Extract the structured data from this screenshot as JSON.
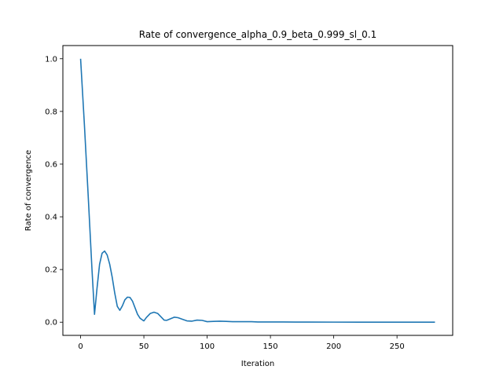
{
  "chart_data": {
    "type": "line",
    "title": "Rate of convergence_alpha_0.9_beta_0.999_sl_0.1",
    "xlabel": "Iteration",
    "ylabel": "Rate of convergence",
    "xlim": [
      -14,
      294
    ],
    "ylim": [
      -0.05,
      1.05
    ],
    "xticks": [
      0,
      50,
      100,
      150,
      200,
      250
    ],
    "yticks": [
      0.0,
      0.2,
      0.4,
      0.6,
      0.8,
      1.0
    ],
    "xtick_labels": [
      "0",
      "50",
      "100",
      "150",
      "200",
      "250"
    ],
    "ytick_labels": [
      "0.0",
      "0.2",
      "0.4",
      "0.6",
      "0.8",
      "1.0"
    ],
    "grid": false,
    "legend": "none",
    "series": [
      {
        "color": "#1f77b4",
        "x": [
          0,
          3,
          6,
          9,
          11,
          13,
          15,
          17,
          19,
          21,
          23,
          25,
          27,
          29,
          31,
          33,
          35,
          37,
          39,
          41,
          43,
          45,
          47,
          49,
          50,
          52,
          55,
          58,
          61,
          64,
          66,
          68,
          71,
          74,
          77,
          80,
          84,
          88,
          92,
          96,
          100,
          105,
          110,
          115,
          120,
          125,
          130,
          135,
          140,
          150,
          160,
          170,
          180,
          200,
          220,
          240,
          260,
          280
        ],
        "y": [
          1.0,
          0.75,
          0.48,
          0.2,
          0.03,
          0.13,
          0.22,
          0.262,
          0.27,
          0.255,
          0.22,
          0.17,
          0.11,
          0.06,
          0.045,
          0.062,
          0.085,
          0.095,
          0.094,
          0.08,
          0.055,
          0.03,
          0.015,
          0.008,
          0.005,
          0.018,
          0.033,
          0.038,
          0.033,
          0.018,
          0.008,
          0.007,
          0.013,
          0.019,
          0.017,
          0.012,
          0.005,
          0.004,
          0.008,
          0.007,
          0.002,
          0.003,
          0.004,
          0.003,
          0.002,
          0.002,
          0.002,
          0.002,
          0.001,
          0.001,
          0.001,
          0.0005,
          0.0005,
          0.0003,
          0.0002,
          0.0001,
          0.0001,
          0.0001
        ]
      }
    ]
  }
}
